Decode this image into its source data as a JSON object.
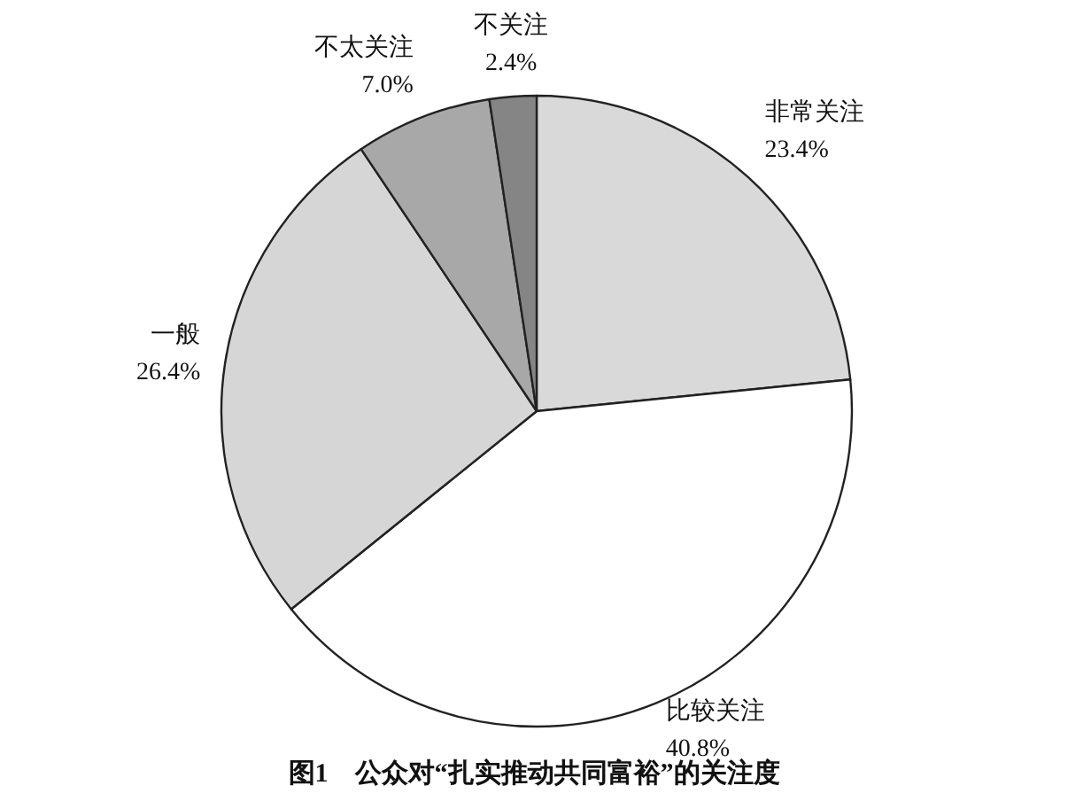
{
  "chart_data": {
    "type": "pie",
    "title": "图1　公众对“扎实推动共同富裕”的关注度",
    "categories": [
      "非常关注",
      "比较关注",
      "一般",
      "不太关注",
      "不关注"
    ],
    "values": [
      23.4,
      40.8,
      26.4,
      7.0,
      2.4
    ],
    "value_labels": [
      "23.4%",
      "40.8%",
      "26.4%",
      "7.0%",
      "2.4%"
    ],
    "colors": [
      "#d9d9d9",
      "#ffffff",
      "#d6d6d6",
      "#a8a8a8",
      "#858585"
    ],
    "legend": false
  }
}
